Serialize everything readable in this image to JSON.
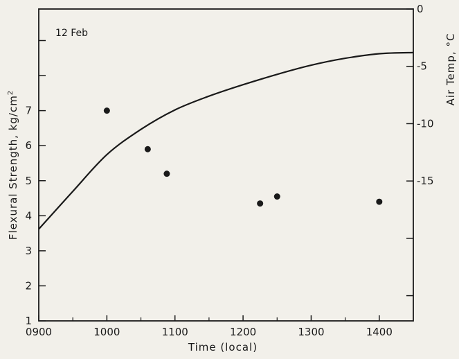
{
  "chart_data": {
    "type": "scatter",
    "annotation": "12 Feb",
    "xlabel": "Time (local)",
    "ylabel_left": "Flexural Strength, kg/cm",
    "ylabel_left_sup": "2",
    "ylabel_right": "Air Temp, °C",
    "x_ticks": [
      {
        "value": 900,
        "label": "0900"
      },
      {
        "value": 1000,
        "label": "1000"
      },
      {
        "value": 1100,
        "label": "1100"
      },
      {
        "value": 1200,
        "label": "1200"
      },
      {
        "value": 1300,
        "label": "1300"
      },
      {
        "value": 1400,
        "label": "1400"
      }
    ],
    "xlim": [
      900,
      1450
    ],
    "left_ylim": [
      1,
      9.9
    ],
    "left_ticks": [
      1,
      2,
      3,
      4,
      5,
      6,
      7
    ],
    "right_ylim": [
      -27.2,
      0
    ],
    "right_ticks": [
      0,
      -5,
      -10,
      -15
    ],
    "right_ticks_unlabeled": [
      -20,
      -25
    ],
    "series": [
      {
        "kind": "points",
        "axis": "left",
        "points": [
          {
            "x": 1000,
            "y": 7.0
          },
          {
            "x": 1060,
            "y": 5.9
          },
          {
            "x": 1088,
            "y": 5.2
          },
          {
            "x": 1225,
            "y": 4.35
          },
          {
            "x": 1250,
            "y": 4.55
          },
          {
            "x": 1400,
            "y": 4.4
          }
        ]
      },
      {
        "kind": "curve",
        "axis": "right",
        "points": [
          {
            "x": 900,
            "y": -19.2
          },
          {
            "x": 950,
            "y": -15.9
          },
          {
            "x": 1000,
            "y": -12.7
          },
          {
            "x": 1050,
            "y": -10.5
          },
          {
            "x": 1100,
            "y": -8.8
          },
          {
            "x": 1150,
            "y": -7.6
          },
          {
            "x": 1200,
            "y": -6.6
          },
          {
            "x": 1250,
            "y": -5.7
          },
          {
            "x": 1300,
            "y": -4.9
          },
          {
            "x": 1350,
            "y": -4.3
          },
          {
            "x": 1400,
            "y": -3.9
          },
          {
            "x": 1450,
            "y": -3.8
          }
        ]
      }
    ],
    "grid": false,
    "colors": {
      "ink": "#1a1a1a",
      "paper": "#f2f0ea"
    }
  }
}
